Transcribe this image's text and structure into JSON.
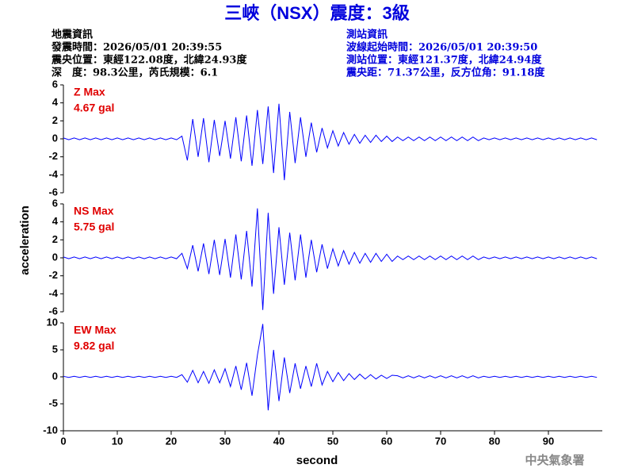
{
  "header": {
    "title": "三峽（NSX）震度：3級",
    "left": [
      "地震資訊",
      "發震時間：2026/05/01 20:39:55",
      "震央位置：東經122.08度，北緯24.93度",
      "深　度：98.3公里，芮氏規模：6.1"
    ],
    "right": [
      "測站資訊",
      "波線起始時間：2026/05/01 20:39:50",
      "測站位置：東經121.37度，北緯24.94度",
      "震央距：71.37公里，反方位角：91.18度"
    ],
    "footer": "中央氣象署"
  },
  "chart_data": [
    {
      "type": "line",
      "annotations": [
        "Z Max",
        "4.67 gal"
      ],
      "color": "#0000ff",
      "ylabel": "acceleration",
      "xlim": [
        0,
        100
      ],
      "ylim": [
        -6,
        6
      ],
      "yticks": [
        -6,
        -4,
        -2,
        0,
        2,
        4,
        6
      ],
      "x": [
        0,
        1,
        2,
        3,
        4,
        5,
        6,
        7,
        8,
        9,
        10,
        11,
        12,
        13,
        14,
        15,
        16,
        17,
        18,
        19,
        20,
        21,
        22,
        23,
        24,
        25,
        26,
        27,
        28,
        29,
        30,
        31,
        32,
        33,
        34,
        35,
        36,
        37,
        38,
        39,
        40,
        41,
        42,
        43,
        44,
        45,
        46,
        47,
        48,
        49,
        50,
        51,
        52,
        53,
        54,
        55,
        56,
        57,
        58,
        59,
        60,
        61,
        62,
        63,
        64,
        65,
        66,
        67,
        68,
        69,
        70,
        71,
        72,
        73,
        74,
        75,
        76,
        77,
        78,
        79,
        80,
        81,
        82,
        83,
        84,
        85,
        86,
        87,
        88,
        89,
        90,
        91,
        92,
        93,
        94,
        95,
        96,
        97,
        98,
        99
      ],
      "values": [
        0.1,
        -0.1,
        0.1,
        -0.1,
        0.1,
        -0.1,
        0.1,
        -0.1,
        0.1,
        -0.1,
        0.1,
        -0.1,
        0.1,
        -0.1,
        0.1,
        -0.1,
        0.1,
        -0.1,
        0.1,
        -0.1,
        0.1,
        -0.1,
        0.3,
        -2.4,
        2.2,
        -2.0,
        2.3,
        -2.6,
        2.1,
        -1.9,
        2.0,
        -2.2,
        2.4,
        -2.5,
        2.6,
        -3.0,
        3.2,
        -2.8,
        3.6,
        -3.8,
        3.9,
        -4.6,
        3.0,
        -2.7,
        2.4,
        -2.0,
        1.8,
        -1.5,
        1.2,
        -1.0,
        0.9,
        -0.8,
        0.7,
        -0.6,
        0.5,
        -0.5,
        0.4,
        -0.4,
        0.4,
        -0.3,
        0.3,
        -0.3,
        0.2,
        -0.2,
        0.2,
        -0.2,
        0.2,
        -0.2,
        0.2,
        -0.2,
        0.2,
        -0.2,
        0.2,
        -0.2,
        0.2,
        -0.2,
        0.2,
        -0.2,
        0.1,
        -0.1,
        0.1,
        -0.1,
        0.1,
        -0.1,
        0.1,
        -0.1,
        0.1,
        -0.1,
        0.1,
        -0.1,
        0.1,
        -0.1,
        0.1,
        -0.1,
        0.1,
        -0.1,
        0.1,
        -0.1,
        0.1,
        -0.1
      ]
    },
    {
      "type": "line",
      "annotations": [
        "NS Max",
        "5.75 gal"
      ],
      "color": "#0000ff",
      "xlim": [
        0,
        100
      ],
      "ylim": [
        -6,
        6
      ],
      "yticks": [
        -6,
        -4,
        -2,
        0,
        2,
        4,
        6
      ],
      "x": [
        0,
        1,
        2,
        3,
        4,
        5,
        6,
        7,
        8,
        9,
        10,
        11,
        12,
        13,
        14,
        15,
        16,
        17,
        18,
        19,
        20,
        21,
        22,
        23,
        24,
        25,
        26,
        27,
        28,
        29,
        30,
        31,
        32,
        33,
        34,
        35,
        36,
        37,
        38,
        39,
        40,
        41,
        42,
        43,
        44,
        45,
        46,
        47,
        48,
        49,
        50,
        51,
        52,
        53,
        54,
        55,
        56,
        57,
        58,
        59,
        60,
        61,
        62,
        63,
        64,
        65,
        66,
        67,
        68,
        69,
        70,
        71,
        72,
        73,
        74,
        75,
        76,
        77,
        78,
        79,
        80,
        81,
        82,
        83,
        84,
        85,
        86,
        87,
        88,
        89,
        90,
        91,
        92,
        93,
        94,
        95,
        96,
        97,
        98,
        99
      ],
      "values": [
        0.1,
        -0.1,
        0.1,
        -0.1,
        0.1,
        -0.1,
        0.1,
        -0.1,
        0.1,
        -0.1,
        0.1,
        -0.1,
        0.1,
        -0.1,
        0.1,
        -0.1,
        0.1,
        -0.1,
        0.1,
        -0.1,
        0.1,
        -0.1,
        0.5,
        -1.2,
        1.4,
        -1.5,
        1.6,
        -1.8,
        2.0,
        -1.9,
        2.1,
        -2.2,
        2.6,
        -2.4,
        3.0,
        -3.2,
        5.5,
        -5.8,
        5.0,
        -4.0,
        3.4,
        -3.0,
        2.8,
        -2.5,
        2.6,
        -2.2,
        2.0,
        -1.6,
        1.5,
        -1.2,
        1.0,
        -0.9,
        0.8,
        -0.7,
        0.6,
        -0.6,
        0.5,
        -0.5,
        0.5,
        -0.4,
        0.4,
        -0.4,
        0.2,
        -0.2,
        0.2,
        -0.2,
        0.2,
        -0.2,
        0.2,
        -0.2,
        0.2,
        -0.2,
        0.2,
        -0.2,
        0.2,
        -0.2,
        0.2,
        -0.2,
        0.1,
        -0.1,
        0.1,
        -0.1,
        0.1,
        -0.1,
        0.1,
        -0.1,
        0.1,
        -0.1,
        0.1,
        -0.1,
        0.1,
        -0.1,
        0.1,
        -0.1,
        0.1,
        -0.1,
        0.1,
        -0.1,
        0.1,
        -0.1
      ]
    },
    {
      "type": "line",
      "annotations": [
        "EW Max",
        "9.82 gal"
      ],
      "color": "#0000ff",
      "xlabel": "second",
      "xlim": [
        0,
        100
      ],
      "ylim": [
        -10,
        10
      ],
      "yticks": [
        -10,
        -5,
        0,
        5,
        10
      ],
      "xticks": [
        0,
        10,
        20,
        30,
        40,
        50,
        60,
        70,
        80,
        90
      ],
      "x": [
        0,
        1,
        2,
        3,
        4,
        5,
        6,
        7,
        8,
        9,
        10,
        11,
        12,
        13,
        14,
        15,
        16,
        17,
        18,
        19,
        20,
        21,
        22,
        23,
        24,
        25,
        26,
        27,
        28,
        29,
        30,
        31,
        32,
        33,
        34,
        35,
        36,
        37,
        38,
        39,
        40,
        41,
        42,
        43,
        44,
        45,
        46,
        47,
        48,
        49,
        50,
        51,
        52,
        53,
        54,
        55,
        56,
        57,
        58,
        59,
        60,
        61,
        62,
        63,
        64,
        65,
        66,
        67,
        68,
        69,
        70,
        71,
        72,
        73,
        74,
        75,
        76,
        77,
        78,
        79,
        80,
        81,
        82,
        83,
        84,
        85,
        86,
        87,
        88,
        89,
        90,
        91,
        92,
        93,
        94,
        95,
        96,
        97,
        98,
        99
      ],
      "values": [
        0.1,
        -0.1,
        0.1,
        -0.1,
        0.1,
        -0.1,
        0.1,
        -0.1,
        0.1,
        -0.1,
        0.1,
        -0.1,
        0.1,
        -0.1,
        0.1,
        -0.1,
        0.1,
        -0.1,
        0.1,
        -0.1,
        0.1,
        -0.1,
        0.4,
        -1.0,
        1.2,
        -1.1,
        1.0,
        -1.2,
        1.3,
        -1.1,
        1.5,
        -1.8,
        2.0,
        -2.4,
        2.6,
        -3.5,
        4.0,
        9.8,
        -6.2,
        5.0,
        -4.5,
        3.6,
        -3.0,
        2.5,
        -2.2,
        2.0,
        -1.8,
        2.5,
        -1.5,
        1.0,
        -0.9,
        0.8,
        -0.7,
        0.6,
        -0.5,
        0.5,
        -0.4,
        0.4,
        -0.4,
        0.3,
        -0.3,
        0.3,
        0.2,
        -0.2,
        0.2,
        -0.2,
        0.2,
        -0.2,
        0.2,
        -0.2,
        0.2,
        -0.2,
        0.2,
        -0.2,
        0.2,
        -0.2,
        0.2,
        -0.2,
        0.1,
        -0.1,
        0.1,
        -0.1,
        0.1,
        -0.1,
        0.1,
        -0.1,
        0.1,
        -0.1,
        0.1,
        -0.1,
        0.1,
        -0.1,
        0.1,
        -0.1,
        0.1,
        -0.1,
        0.1,
        -0.1,
        0.1,
        -0.1
      ]
    }
  ]
}
